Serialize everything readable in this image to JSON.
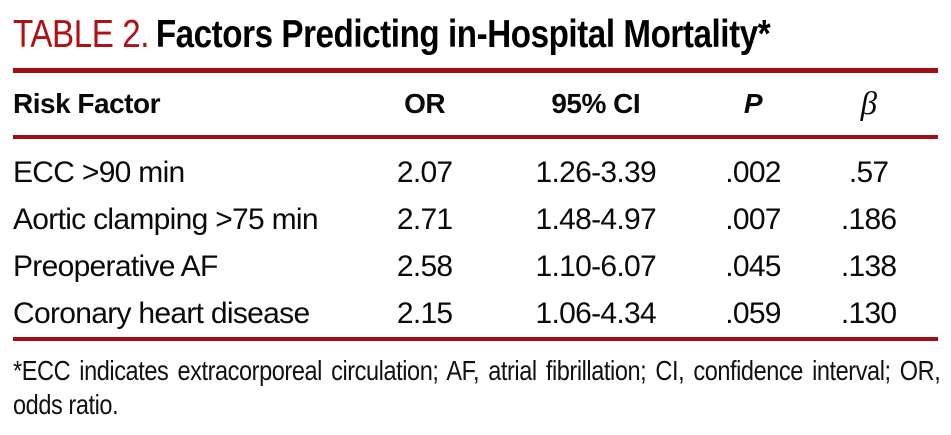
{
  "title": {
    "label": "TABLE 2.",
    "caption": "Factors Predicting in-Hospital Mortality*"
  },
  "table": {
    "columns": [
      {
        "label": "Risk Factor"
      },
      {
        "label": "OR"
      },
      {
        "label": "95% CI"
      },
      {
        "label": "P"
      },
      {
        "label": "β"
      }
    ],
    "rows": [
      {
        "risk_factor": "ECC >90 min",
        "or": "2.07",
        "ci": "1.26-3.39",
        "p": ".002",
        "beta": ".57"
      },
      {
        "risk_factor": "Aortic clamping >75 min",
        "or": "2.71",
        "ci": "1.48-4.97",
        "p": ".007",
        "beta": ".186"
      },
      {
        "risk_factor": "Preoperative AF",
        "or": "2.58",
        "ci": "1.10-6.07",
        "p": ".045",
        "beta": ".138"
      },
      {
        "risk_factor": "Coronary heart disease",
        "or": "2.15",
        "ci": "1.06-4.34",
        "p": ".059",
        "beta": ".130"
      }
    ]
  },
  "footnote": "*ECC indicates extracorporeal circulation; AF, atrial fibrillation; CI, confidence interval; OR, odds ratio.",
  "colors": {
    "accent_red": "#a40d13",
    "title_red": "#b01116",
    "text_black": "#0a0a0a"
  }
}
